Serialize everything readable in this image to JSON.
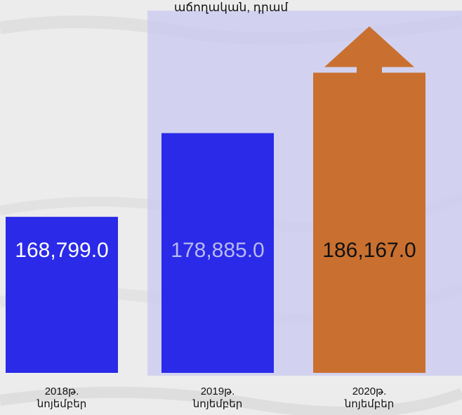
{
  "colors": {
    "background": "#ececec",
    "highlight_panel": "#c9c9f2",
    "bar_blue": "#2a2ae8",
    "bar_orange": "#c97030",
    "arrow": "#c97030",
    "label_white": "#ffffff",
    "label_light": "#b9b9f0",
    "label_dark": "#111111"
  },
  "chart_data": {
    "type": "bar",
    "title": "աճողական, դրամ",
    "categories": [
      "2018թ. նոյեմբեր",
      "2019թ. նոյեմբեր",
      "2020թ. նոյեմբեր"
    ],
    "category_lines": [
      [
        "2018թ.",
        "նոյեմբեր"
      ],
      [
        "2019թ.",
        "նոյեմբեր"
      ],
      [
        "2020թ.",
        "նոյեմբեր"
      ]
    ],
    "values": [
      168799.0,
      178885.0,
      186167.0
    ],
    "value_labels": [
      "168,799.0",
      "178,885.0",
      "186,167.0"
    ],
    "bar_colors": [
      "#2a2ae8",
      "#2a2ae8",
      "#c97030"
    ],
    "label_colors": [
      "#ffffff",
      "#b9b9f0",
      "#111111"
    ],
    "grid": false,
    "legend": "none"
  }
}
